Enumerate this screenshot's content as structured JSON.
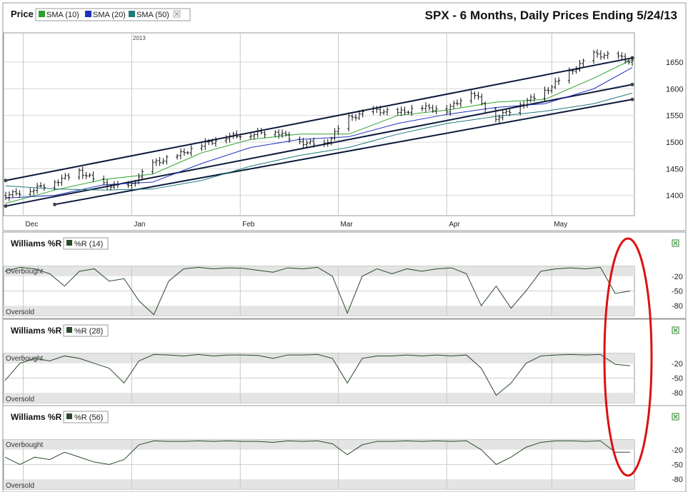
{
  "price_panel": {
    "label": "Price",
    "title": "SPX - 6 Months, Daily Prices Ending 5/24/13",
    "legend": [
      {
        "label": "SMA (10)",
        "color": "#2ca02c"
      },
      {
        "label": "SMA (20)",
        "color": "#2233bb"
      },
      {
        "label": "SMA (50)",
        "color": "#1f7a7a"
      }
    ],
    "close_icon": "close-icon",
    "year_marker": "2013",
    "x_labels": [
      "Dec",
      "Jan",
      "Feb",
      "Mar",
      "Apr",
      "May"
    ],
    "y_ticks": [
      "1650",
      "1600",
      "1550",
      "1500",
      "1450",
      "1400"
    ]
  },
  "wr_panels": [
    {
      "title": "Williams %R",
      "legend": "%R (14)",
      "overbought": "Overbought",
      "oversold": "Oversold",
      "ticks": [
        "-20",
        "-50",
        "-80"
      ],
      "expand_icon": "expand-icon"
    },
    {
      "title": "Williams %R",
      "legend": "%R (28)",
      "overbought": "Overbought",
      "oversold": "Oversold",
      "ticks": [
        "-20",
        "-50",
        "-80"
      ],
      "expand_icon": "expand-icon"
    },
    {
      "title": "Williams %R",
      "legend": "%R (56)",
      "overbought": "Overbought",
      "oversold": "Oversold",
      "ticks": [
        "-20",
        "-50",
        "-80"
      ],
      "expand_icon": "expand-icon"
    }
  ],
  "colors": {
    "price_bars": "#111111",
    "sma10": "#2ca02c",
    "sma20": "#2233bb",
    "sma50": "#1f7a7a",
    "trendlines": "#0b1a3a",
    "wr_line": "#2a4a2a",
    "band": "#e4e4e4",
    "annotation": "#dd1111"
  },
  "chart_data": [
    {
      "type": "line",
      "title": "SPX - 6 Months, Daily Prices Ending 5/24/13",
      "x_range": [
        "2012-11-26",
        "2013-05-24"
      ],
      "ylim": [
        1362,
        1705
      ],
      "y_ticks": [
        1400,
        1450,
        1500,
        1550,
        1600,
        1650
      ],
      "x_labels": [
        "Dec",
        "Jan",
        "Feb",
        "Mar",
        "Apr",
        "May"
      ],
      "grid": true,
      "legend_placement": "top-left",
      "series": [
        {
          "name": "Price",
          "style": "ohlc",
          "x": [
            "11-26",
            "12-03",
            "12-10",
            "12-17",
            "12-24",
            "12-31",
            "01-07",
            "01-14",
            "01-21",
            "01-28",
            "02-04",
            "02-11",
            "02-18",
            "02-25",
            "03-04",
            "03-11",
            "03-18",
            "03-25",
            "04-01",
            "04-08",
            "04-15",
            "04-22",
            "04-29",
            "05-06",
            "05-13",
            "05-20",
            "05-24"
          ],
          "y": [
            1400,
            1410,
            1425,
            1445,
            1420,
            1415,
            1460,
            1475,
            1495,
            1510,
            1515,
            1520,
            1500,
            1495,
            1545,
            1560,
            1555,
            1565,
            1560,
            1595,
            1545,
            1570,
            1595,
            1630,
            1665,
            1660,
            1650
          ]
        },
        {
          "name": "SMA (10)",
          "x": [
            "11-26",
            "12-10",
            "12-24",
            "01-07",
            "01-21",
            "02-04",
            "02-18",
            "03-04",
            "03-18",
            "04-01",
            "04-15",
            "04-29",
            "05-13",
            "05-24"
          ],
          "y": [
            1385,
            1410,
            1430,
            1440,
            1480,
            1505,
            1515,
            1515,
            1550,
            1560,
            1575,
            1580,
            1620,
            1655
          ]
        },
        {
          "name": "SMA (20)",
          "x": [
            "11-26",
            "12-10",
            "12-24",
            "01-07",
            "01-21",
            "02-04",
            "02-18",
            "03-04",
            "03-18",
            "04-01",
            "04-15",
            "04-29",
            "05-13",
            "05-24"
          ],
          "y": [
            1395,
            1400,
            1420,
            1425,
            1460,
            1490,
            1505,
            1510,
            1535,
            1552,
            1565,
            1572,
            1600,
            1640
          ]
        },
        {
          "name": "SMA (50)",
          "x": [
            "11-26",
            "12-10",
            "12-24",
            "01-07",
            "01-21",
            "02-04",
            "02-18",
            "03-04",
            "03-18",
            "04-01",
            "04-15",
            "04-29",
            "05-13",
            "05-24"
          ],
          "y": [
            1418,
            1412,
            1410,
            1412,
            1428,
            1455,
            1475,
            1490,
            1515,
            1535,
            1548,
            1558,
            1572,
            1592
          ]
        }
      ],
      "trendlines": [
        {
          "x": [
            "11-26",
            "05-24"
          ],
          "y": [
            1428,
            1658
          ]
        },
        {
          "x": [
            "11-26",
            "05-24"
          ],
          "y": [
            1380,
            1608
          ]
        },
        {
          "x": [
            "12-10",
            "05-24"
          ],
          "y": [
            1383,
            1580
          ]
        }
      ]
    },
    {
      "type": "line",
      "title": "Williams %R",
      "series": [
        {
          "name": "%R (14)",
          "values": [
            -10,
            -2,
            -5,
            -15,
            -40,
            -10,
            -5,
            -30,
            -25,
            -70,
            -98,
            -30,
            -5,
            -2,
            -5,
            -3,
            -4,
            -8,
            -12,
            -3,
            -5,
            -2,
            -20,
            -95,
            -20,
            -5,
            -15,
            -5,
            -10,
            -5,
            -3,
            -15,
            -80,
            -40,
            -85,
            -50,
            -10,
            -5,
            -3,
            -5,
            -2,
            -55,
            -50
          ]
        }
      ],
      "ylim": [
        -100,
        0
      ],
      "y_ticks": [
        -20,
        -50,
        -80
      ]
    },
    {
      "type": "line",
      "title": "Williams %R",
      "series": [
        {
          "name": "%R (28)",
          "values": [
            -55,
            -20,
            -10,
            -15,
            -5,
            -10,
            -20,
            -30,
            -60,
            -15,
            -2,
            -3,
            -5,
            -2,
            -5,
            -3,
            -3,
            -4,
            -10,
            -3,
            -3,
            -2,
            -10,
            -60,
            -10,
            -5,
            -5,
            -3,
            -5,
            -3,
            -5,
            -3,
            -30,
            -85,
            -60,
            -20,
            -5,
            -3,
            -2,
            -3,
            -2,
            -22,
            -25
          ]
        }
      ],
      "ylim": [
        -100,
        0
      ],
      "y_ticks": [
        -20,
        -50,
        -80
      ]
    },
    {
      "type": "line",
      "title": "Williams %R",
      "series": [
        {
          "name": "%R (56)",
          "values": [
            -35,
            -50,
            -35,
            -40,
            -25,
            -35,
            -45,
            -50,
            -40,
            -10,
            -2,
            -3,
            -3,
            -2,
            -3,
            -2,
            -3,
            -3,
            -5,
            -2,
            -3,
            -2,
            -8,
            -30,
            -10,
            -3,
            -3,
            -2,
            -3,
            -2,
            -3,
            -2,
            -20,
            -50,
            -35,
            -15,
            -5,
            -2,
            -2,
            -3,
            -2,
            -25,
            -25
          ]
        }
      ],
      "ylim": [
        -100,
        0
      ],
      "y_ticks": [
        -20,
        -50,
        -80
      ]
    }
  ]
}
